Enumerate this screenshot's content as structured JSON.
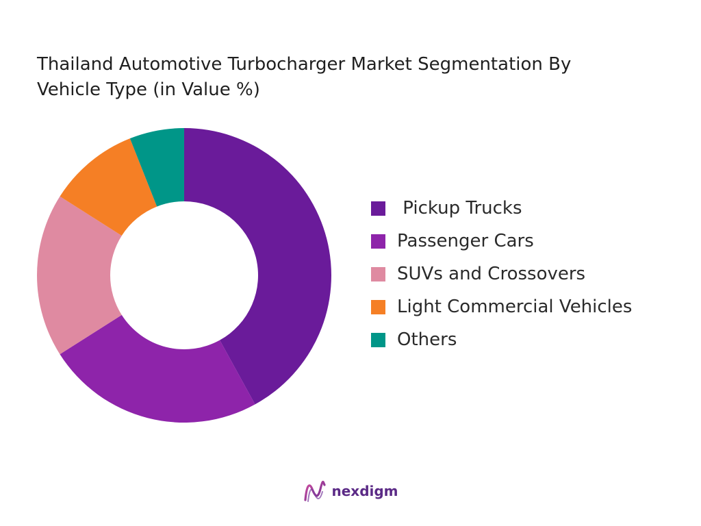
{
  "chart_data": {
    "type": "pie",
    "variant": "donut",
    "title": "Thailand Automotive Turbocharger Market Segmentation By Vehicle Type (in Value %)",
    "title_lines": [
      "Thailand Automotive Turbocharger Market Segmentation By",
      "Vehicle Type (in Value %)"
    ],
    "legend_position": "right",
    "series": [
      {
        "name": " Pickup Trucks",
        "value": 42,
        "color": "#6a1b9a"
      },
      {
        "name": "Passenger Cars",
        "value": 24,
        "color": "#8e24aa"
      },
      {
        "name": "SUVs and Crossovers",
        "value": 18,
        "color": "#df8aa1"
      },
      {
        "name": "Light Commercial Vehicles",
        "value": 10,
        "color": "#f57f25"
      },
      {
        "name": "Others",
        "value": 6,
        "color": "#009688"
      }
    ]
  },
  "brand": {
    "name": "nexdigm",
    "color": "#5b2a86"
  }
}
